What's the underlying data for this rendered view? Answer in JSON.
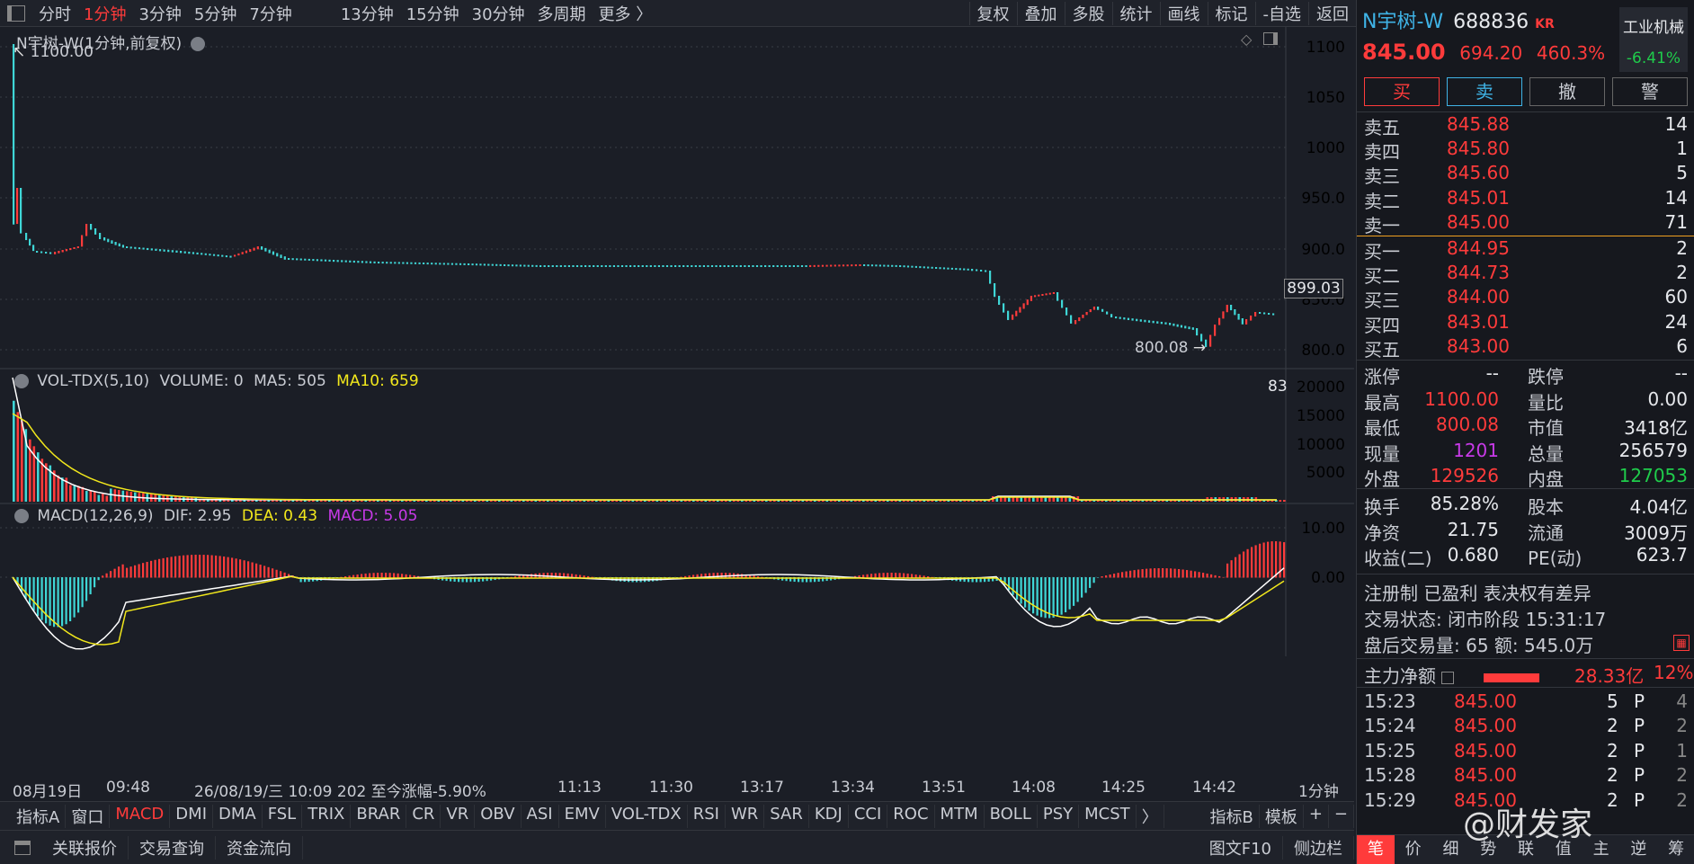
{
  "toolbar": {
    "periods": [
      "分时",
      "1分钟",
      "3分钟",
      "5分钟",
      "7分钟",
      "13分钟",
      "15分钟",
      "30分钟",
      "多周期",
      "更多 〉"
    ],
    "active_period": "1分钟",
    "right_items": [
      "复权",
      "叠加",
      "多股",
      "统计",
      "画线",
      "标记",
      "-自选",
      "返回"
    ]
  },
  "main_chart": {
    "title": "N宇树-W(1分钟,前复权)",
    "y_ticks": [
      "1100",
      "1050",
      "1000",
      "950.0",
      "900.0",
      "850.0",
      "800.0"
    ],
    "high_label": "1100.00",
    "low_label": "800.08",
    "current_price_tag": "899.03",
    "right_edge_label": "83"
  },
  "volume_panel": {
    "title": "VOL-TDX(5,10)",
    "volume": "VOLUME: 0",
    "ma5": "MA5: 505",
    "ma10": "MA10: 659",
    "y_ticks": [
      "20000",
      "15000",
      "10000",
      "5000"
    ]
  },
  "macd_panel": {
    "title": "MACD(12,26,9)",
    "dif": "DIF: 2.95",
    "dea": "DEA: 0.43",
    "macd": "MACD: 5.05",
    "y_ticks": [
      "10.00",
      "0.00"
    ]
  },
  "time_axis": {
    "date": "08月19日",
    "labels": [
      "09:48",
      "11:13",
      "11:30",
      "13:17",
      "13:34",
      "13:51",
      "14:08",
      "14:25",
      "14:42"
    ],
    "info": "26/08/19/三 10:09 202 至今涨幅-5.90%",
    "period_label": "1分钟"
  },
  "indicators": [
    "指标A",
    "窗口",
    "MACD",
    "DMI",
    "DMA",
    "FSL",
    "TRIX",
    "BRAR",
    "CR",
    "VR",
    "OBV",
    "ASI",
    "EMV",
    "VOL-TDX",
    "RSI",
    "WR",
    "SAR",
    "KDJ",
    "CCI",
    "ROC",
    "MTM",
    "BOLL",
    "PSY",
    "MCST",
    "〉"
  ],
  "active_indicator": "MACD",
  "indicators_right": [
    "指标B",
    "模板",
    "+",
    "−"
  ],
  "bottom_tabs": [
    "关联报价",
    "交易查询",
    "资金流向"
  ],
  "bottom_right": [
    "图文F10",
    "侧边栏"
  ],
  "stock": {
    "name": "N宇树-W",
    "code": "688836",
    "tag": "KR",
    "sector": "工业机械",
    "sector_change": "-6.41%",
    "price": "845.00",
    "change": "694.20",
    "change_pct": "460.3%"
  },
  "trade_buttons": [
    "买",
    "卖",
    "撤",
    "警"
  ],
  "asks": [
    {
      "label": "卖五",
      "price": "845.88",
      "vol": "14"
    },
    {
      "label": "卖四",
      "price": "845.80",
      "vol": "1"
    },
    {
      "label": "卖三",
      "price": "845.60",
      "vol": "5"
    },
    {
      "label": "卖二",
      "price": "845.01",
      "vol": "14"
    },
    {
      "label": "卖一",
      "price": "845.00",
      "vol": "71"
    }
  ],
  "bids": [
    {
      "label": "买一",
      "price": "844.95",
      "vol": "2"
    },
    {
      "label": "买二",
      "price": "844.73",
      "vol": "2"
    },
    {
      "label": "买三",
      "price": "844.00",
      "vol": "60"
    },
    {
      "label": "买四",
      "price": "843.01",
      "vol": "24"
    },
    {
      "label": "买五",
      "price": "843.00",
      "vol": "6"
    }
  ],
  "stats1": [
    {
      "l1": "涨停",
      "v1": "--",
      "l2": "跌停",
      "v2": "--"
    },
    {
      "l1": "最高",
      "v1": "1100.00",
      "l2": "量比",
      "v2": "0.00"
    },
    {
      "l1": "最低",
      "v1": "800.08",
      "l2": "市值",
      "v2": "3418亿"
    },
    {
      "l1": "现量",
      "v1": "1201",
      "l2": "总量",
      "v2": "256579"
    },
    {
      "l1": "外盘",
      "v1": "129526",
      "l2": "内盘",
      "v2": "127053"
    }
  ],
  "stats2": [
    {
      "l1": "换手",
      "v1": "85.28%",
      "l2": "股本",
      "v2": "4.04亿"
    },
    {
      "l1": "净资",
      "v1": "21.75",
      "l2": "流通",
      "v2": "3009万"
    },
    {
      "l1": "收益(二)",
      "v1": "0.680",
      "l2": "PE(动)",
      "v2": "623.7"
    }
  ],
  "info_lines": {
    "tags": "注册制 已盈利 表决权有差异",
    "status": "交易状态: 闭市阶段 15:31:17",
    "after_hours": "盘后交易量: 65  额: 545.0万"
  },
  "main_flow": {
    "label": "主力净额",
    "amount": "28.33亿",
    "pct": "12%"
  },
  "ticks": [
    {
      "time": "15:23",
      "price": "845.00",
      "vol": "5",
      "side": "P",
      "n": "4"
    },
    {
      "time": "15:24",
      "price": "845.00",
      "vol": "2",
      "side": "P",
      "n": "2"
    },
    {
      "time": "15:25",
      "price": "845.00",
      "vol": "2",
      "side": "P",
      "n": "1"
    },
    {
      "time": "15:28",
      "price": "845.00",
      "vol": "2",
      "side": "P",
      "n": "2"
    },
    {
      "time": "15:29",
      "price": "845.00",
      "vol": "2",
      "side": "P",
      "n": "2"
    }
  ],
  "right_tabs": [
    "笔",
    "价",
    "细",
    "势",
    "联",
    "值",
    "主",
    "逆",
    "筹"
  ],
  "watermark": "@财发家",
  "colors": {
    "up": "#ff3b3b",
    "down": "#3fd6d6",
    "ma5": "#ffffff",
    "ma10": "#f2e81c",
    "macd_purple": "#c83ae8"
  }
}
